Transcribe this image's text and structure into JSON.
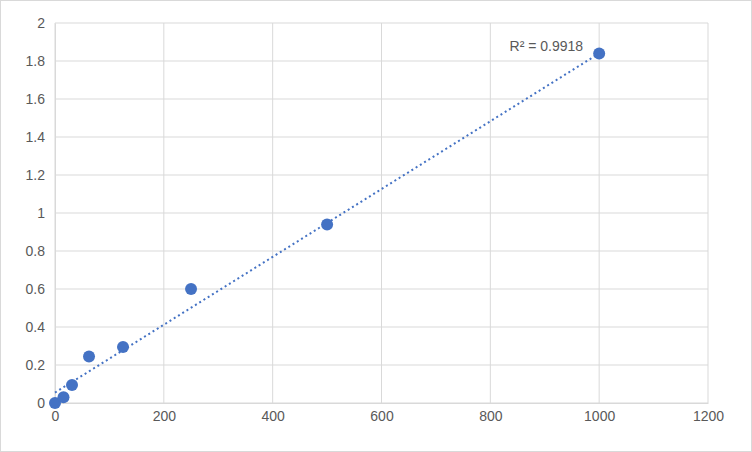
{
  "chart_data": {
    "type": "scatter",
    "x": [
      0,
      15.6,
      31.25,
      62.5,
      125,
      250,
      500,
      1000
    ],
    "values": [
      0,
      0.03,
      0.095,
      0.245,
      0.295,
      0.6,
      0.94,
      1.84
    ],
    "color": "#4472c4",
    "marker": "circle",
    "xlim": [
      0,
      1200
    ],
    "xticks": [
      0,
      200,
      400,
      600,
      800,
      1000,
      1200
    ],
    "ylim": [
      0,
      2
    ],
    "yticks": [
      0,
      0.2,
      0.4,
      0.6,
      0.8,
      1,
      1.2,
      1.4,
      1.6,
      1.8,
      2
    ],
    "grid": true,
    "trendline": {
      "x": [
        0,
        1000
      ],
      "values": [
        0.055,
        1.84
      ],
      "line_style": "dotted",
      "color": "#4472c4"
    },
    "annotations": [
      "R² = 0.9918"
    ]
  }
}
